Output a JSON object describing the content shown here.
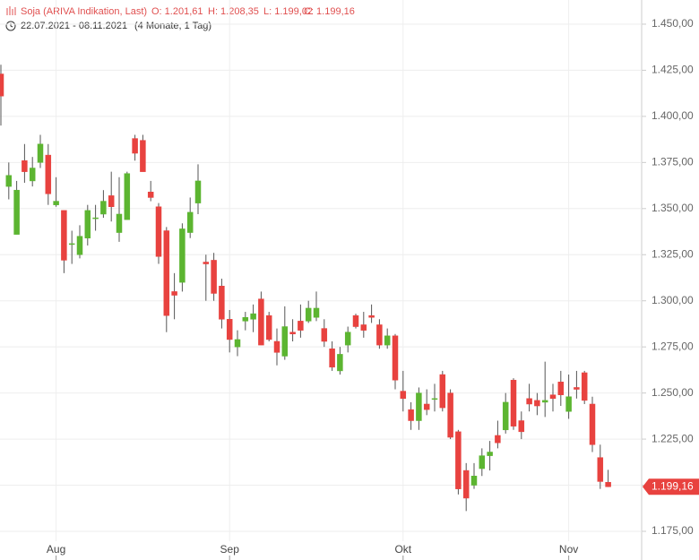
{
  "chart_data": {
    "type": "candlestick",
    "title": "Soja (ARIVA Indikation, Last)",
    "summary": [
      "O: 1.201,61",
      "H: 1.208,35",
      "L: 1.199,02",
      "C: 1.199,16"
    ],
    "date_range": "22.07.2021 - 08.11.2021",
    "duration": "(4 Monate, 1 Tag)",
    "categories": [
      null,
      null,
      null,
      null,
      null,
      null,
      null,
      "Aug",
      null,
      null,
      null,
      null,
      null,
      null,
      null,
      null,
      null,
      null,
      null,
      null,
      null,
      null,
      null,
      null,
      null,
      null,
      null,
      null,
      null,
      "Sep",
      null,
      null,
      null,
      null,
      null,
      null,
      null,
      null,
      null,
      null,
      null,
      null,
      null,
      null,
      null,
      null,
      null,
      null,
      null,
      null,
      null,
      "Okt",
      null,
      null,
      null,
      null,
      null,
      null,
      null,
      null,
      null,
      null,
      null,
      null,
      null,
      null,
      null,
      null,
      null,
      null,
      null,
      null,
      "Nov",
      null,
      null,
      null,
      null,
      null
    ],
    "series": [
      {
        "up_color": "#5cb531",
        "down_color": "#e8423f",
        "open": [
          1423,
          1362,
          1336,
          1376,
          1365,
          1375,
          1379,
          1352,
          1349,
          1331,
          1325,
          1334,
          1345,
          1347,
          1357,
          1337,
          1344,
          1388,
          1387,
          1359,
          1351,
          1338,
          1305,
          1310,
          1337,
          1353,
          1321,
          1322,
          1308,
          1290,
          1275,
          1289,
          1290,
          1301,
          1292,
          1278,
          1270,
          1283,
          1289,
          1289,
          1291,
          1285,
          1274,
          1262,
          1276,
          1292,
          1287,
          1292,
          1287,
          1276,
          1281,
          1251,
          1241,
          1235,
          1244,
          1247,
          1260,
          1250,
          1229,
          1208,
          1200,
          1209,
          1216,
          1227,
          1230,
          1257,
          1235,
          1247,
          1246,
          1245,
          1249,
          1256,
          1240,
          1253,
          1261,
          1244,
          1215,
          1201.61
        ],
        "high": [
          1428,
          1375,
          1365,
          1385,
          1378,
          1390,
          1385,
          1367,
          1349,
          1338,
          1341,
          1352,
          1352,
          1360,
          1370,
          1367,
          1370,
          1390,
          1390,
          1365,
          1353,
          1340,
          1315,
          1342,
          1356,
          1374,
          1325,
          1326,
          1312,
          1295,
          1284,
          1294,
          1298,
          1305,
          1294,
          1285,
          1297,
          1290,
          1298,
          1300,
          1305,
          1290,
          1278,
          1275,
          1286,
          1293,
          1294,
          1298,
          1290,
          1285,
          1282,
          1262,
          1245,
          1253,
          1252,
          1255,
          1262,
          1252,
          1230,
          1212,
          1212,
          1220,
          1224,
          1235,
          1250,
          1258,
          1240,
          1255,
          1250,
          1267,
          1255,
          1262,
          1260,
          1262,
          1262,
          1248,
          1222,
          1208.35
        ],
        "low": [
          1395,
          1355,
          1336,
          1364,
          1362,
          1372,
          1352,
          1351,
          1315,
          1320,
          1323,
          1330,
          1338,
          1345,
          1343,
          1332,
          1344,
          1376,
          1370,
          1354,
          1320,
          1283,
          1290,
          1305,
          1334,
          1347,
          1300,
          1300,
          1285,
          1272,
          1270,
          1284,
          1283,
          1276,
          1278,
          1265,
          1268,
          1278,
          1280,
          1288,
          1289,
          1275,
          1262,
          1260,
          1272,
          1285,
          1280,
          1288,
          1274,
          1274,
          1252,
          1240,
          1230,
          1230,
          1238,
          1240,
          1240,
          1225,
          1195,
          1186,
          1198,
          1205,
          1208,
          1220,
          1228,
          1230,
          1225,
          1240,
          1238,
          1237,
          1240,
          1243,
          1236,
          1247,
          1244,
          1218,
          1198,
          1199.02
        ],
        "close": [
          1411,
          1368,
          1360,
          1370,
          1372,
          1385,
          1358,
          1354,
          1322,
          1331,
          1335,
          1349,
          1345,
          1354,
          1351,
          1347,
          1369,
          1380,
          1370,
          1356,
          1324,
          1292,
          1303,
          1339,
          1348,
          1365,
          1320,
          1304,
          1290,
          1279,
          1279,
          1291,
          1293,
          1276,
          1279,
          1272,
          1286,
          1282,
          1284,
          1296,
          1296,
          1278,
          1264,
          1271,
          1283,
          1286,
          1284,
          1291,
          1276,
          1281,
          1257,
          1247,
          1235,
          1250,
          1241,
          1247,
          1242,
          1226,
          1198,
          1193,
          1205,
          1216,
          1218,
          1223,
          1245,
          1232,
          1229,
          1244,
          1243,
          1246,
          1247,
          1249,
          1248,
          1252,
          1246,
          1222,
          1202,
          1199.16
        ]
      }
    ],
    "ylim": [
      1171.6,
      1463.1
    ],
    "yticks": [
      {
        "value": 1175,
        "label": "1.175,00"
      },
      {
        "value": 1200,
        "label": "1.200,00"
      },
      {
        "value": 1225,
        "label": "1.225,00"
      },
      {
        "value": 1250,
        "label": "1.250,00"
      },
      {
        "value": 1275,
        "label": "1.275,00"
      },
      {
        "value": 1300,
        "label": "1.300,00"
      },
      {
        "value": 1325,
        "label": "1.325,00"
      },
      {
        "value": 1350,
        "label": "1.350,00"
      },
      {
        "value": 1375,
        "label": "1.375,00"
      },
      {
        "value": 1400,
        "label": "1.400,00"
      },
      {
        "value": 1425,
        "label": "1.425,00"
      },
      {
        "value": 1450,
        "label": "1.450,00"
      }
    ],
    "last_price": {
      "value": 1199.16,
      "label": "1.199,16"
    },
    "grid": true
  }
}
